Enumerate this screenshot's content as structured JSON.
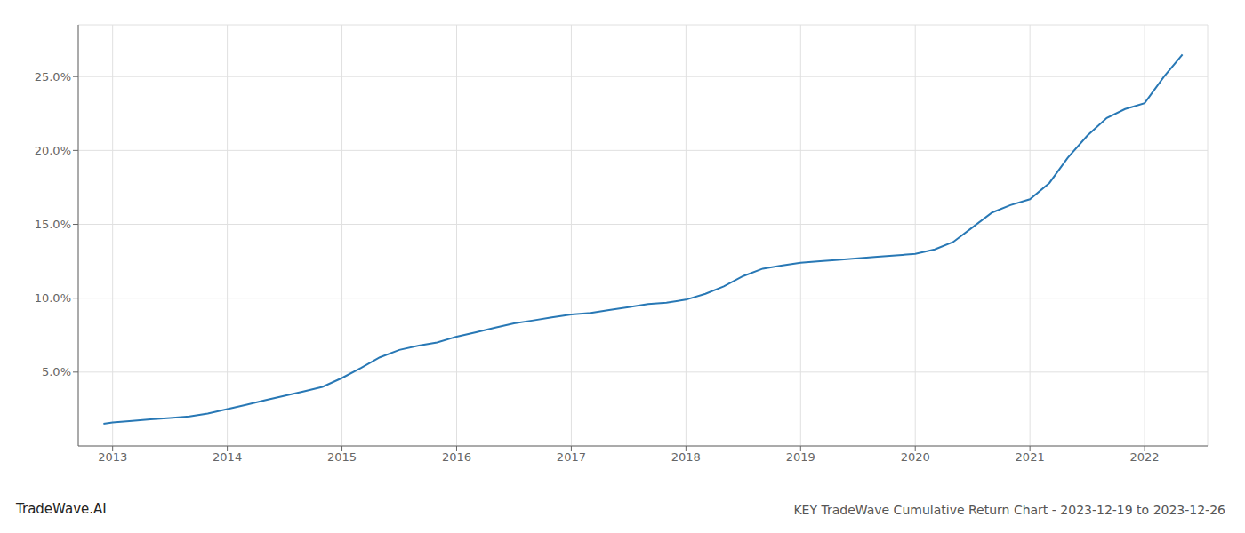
{
  "chart_data": {
    "type": "line",
    "title": "KEY TradeWave Cumulative Return Chart - 2023-12-19 to 2023-12-26",
    "annotations": [
      "TradeWave.AI"
    ],
    "x": [
      2012.92,
      2013.0,
      2013.17,
      2013.33,
      2013.5,
      2013.67,
      2013.83,
      2014.0,
      2014.17,
      2014.33,
      2014.5,
      2014.67,
      2014.83,
      2015.0,
      2015.17,
      2015.33,
      2015.5,
      2015.67,
      2015.83,
      2016.0,
      2016.17,
      2016.33,
      2016.5,
      2016.67,
      2016.83,
      2017.0,
      2017.17,
      2017.33,
      2017.5,
      2017.67,
      2017.83,
      2018.0,
      2018.17,
      2018.33,
      2018.5,
      2018.67,
      2018.83,
      2019.0,
      2019.17,
      2019.33,
      2019.5,
      2019.67,
      2019.83,
      2020.0,
      2020.17,
      2020.33,
      2020.5,
      2020.67,
      2020.83,
      2021.0,
      2021.17,
      2021.33,
      2021.5,
      2021.67,
      2021.83,
      2022.0,
      2022.17,
      2022.33
    ],
    "values": [
      0.015,
      0.016,
      0.017,
      0.018,
      0.019,
      0.02,
      0.022,
      0.025,
      0.028,
      0.031,
      0.034,
      0.037,
      0.04,
      0.046,
      0.053,
      0.06,
      0.065,
      0.068,
      0.07,
      0.074,
      0.077,
      0.08,
      0.083,
      0.085,
      0.087,
      0.089,
      0.09,
      0.092,
      0.094,
      0.096,
      0.097,
      0.099,
      0.103,
      0.108,
      0.115,
      0.12,
      0.122,
      0.124,
      0.125,
      0.126,
      0.127,
      0.128,
      0.129,
      0.13,
      0.133,
      0.138,
      0.148,
      0.158,
      0.163,
      0.167,
      0.178,
      0.195,
      0.21,
      0.222,
      0.228,
      0.232,
      0.25,
      0.265
    ],
    "color": "#2878b5",
    "xlim": [
      2012.7,
      2022.55
    ],
    "xticks": [
      2013,
      2014,
      2015,
      2016,
      2017,
      2018,
      2019,
      2020,
      2021,
      2022
    ],
    "ylim": [
      0.0,
      0.285
    ],
    "yticks": [
      {
        "value": 0.05,
        "label": "5.0%"
      },
      {
        "value": 0.1,
        "label": "10.0%"
      },
      {
        "value": 0.15,
        "label": "15.0%"
      },
      {
        "value": 0.2,
        "label": "20.0%"
      },
      {
        "value": 0.25,
        "label": "25.0%"
      }
    ],
    "grid": true
  }
}
